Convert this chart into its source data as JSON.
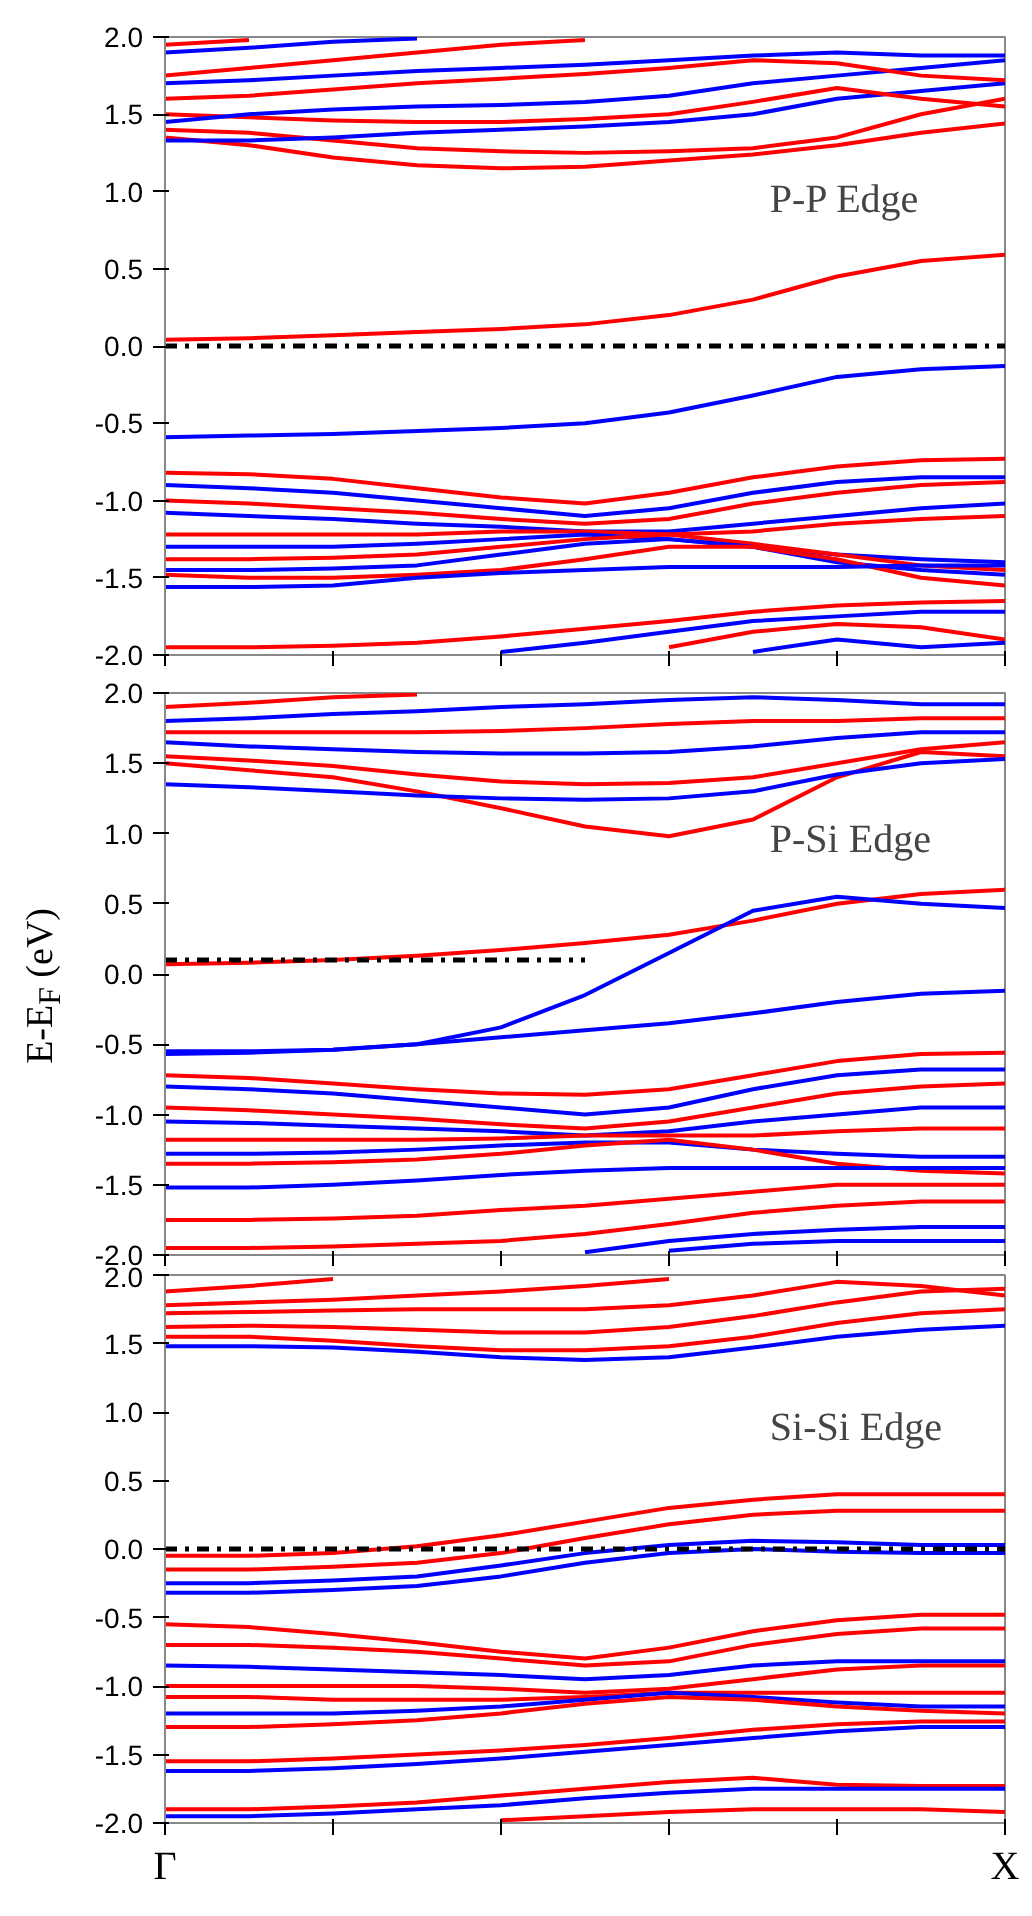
{
  "chart_data": [
    {
      "type": "line",
      "annotations": [
        "P-P Edge"
      ],
      "ylim": [
        -2,
        2
      ],
      "categories": [
        null,
        null,
        null,
        null,
        null,
        null,
        null,
        null,
        null,
        null,
        null
      ],
      "yticks": [
        {
          "value": -2,
          "label": "-2.0"
        },
        {
          "value": -1.5,
          "label": "-1.5"
        },
        {
          "value": -1,
          "label": "-1.0"
        },
        {
          "value": -0.5,
          "label": "-0.5"
        },
        {
          "value": 0,
          "label": "0.0"
        },
        {
          "value": 0.5,
          "label": "0.5"
        },
        {
          "value": 1,
          "label": "1.0"
        },
        {
          "value": 1.5,
          "label": "1.5"
        },
        {
          "value": 2,
          "label": "2.0"
        }
      ],
      "tick_labels": "y",
      "series": [
        {
          "color": "#ff0000",
          "values": [
            0.04,
            0.05,
            0.07,
            0.09,
            0.11,
            0.14,
            0.2,
            0.3,
            0.45,
            0.55,
            0.59
          ]
        },
        {
          "color": "#0000ff",
          "values": [
            -0.59,
            -0.58,
            -0.57,
            -0.55,
            -0.53,
            -0.5,
            -0.43,
            -0.32,
            -0.2,
            -0.15,
            -0.13
          ]
        },
        {
          "color": "#ff0000",
          "values": [
            1.35,
            1.3,
            1.22,
            1.17,
            1.15,
            1.16,
            1.2,
            1.24,
            1.3,
            1.38,
            1.44
          ]
        },
        {
          "color": "#ff0000",
          "values": [
            1.4,
            1.38,
            1.33,
            1.28,
            1.26,
            1.25,
            1.26,
            1.28,
            1.35,
            1.5,
            1.6
          ]
        },
        {
          "color": "#0000ff",
          "values": [
            1.33,
            1.33,
            1.35,
            1.38,
            1.4,
            1.42,
            1.45,
            1.5,
            1.6,
            1.65,
            1.7
          ]
        },
        {
          "color": "#ff0000",
          "values": [
            1.5,
            1.48,
            1.46,
            1.45,
            1.45,
            1.47,
            1.5,
            1.58,
            1.67,
            1.6,
            1.55
          ]
        },
        {
          "color": "#0000ff",
          "values": [
            1.45,
            1.5,
            1.53,
            1.55,
            1.56,
            1.58,
            1.62,
            1.7,
            1.75,
            1.8,
            1.85
          ]
        },
        {
          "color": "#ff0000",
          "values": [
            1.6,
            1.62,
            1.66,
            1.7,
            1.73,
            1.76,
            1.8,
            1.85,
            1.83,
            1.75,
            1.72
          ]
        },
        {
          "color": "#0000ff",
          "values": [
            1.7,
            1.72,
            1.75,
            1.78,
            1.8,
            1.82,
            1.85,
            1.88,
            1.9,
            1.88,
            1.88
          ]
        },
        {
          "color": "#ff0000",
          "values": [
            1.75,
            1.8,
            1.85,
            1.9,
            1.95,
            1.98,
            null,
            null,
            null,
            null,
            null
          ]
        },
        {
          "color": "#0000ff",
          "values": [
            1.9,
            1.93,
            1.97,
            1.99,
            null,
            null,
            null,
            null,
            null,
            null,
            null
          ]
        },
        {
          "color": "#ff0000",
          "values": [
            1.95,
            1.98,
            null,
            null,
            null,
            null,
            null,
            null,
            null,
            null,
            null
          ]
        },
        {
          "color": "#ff0000",
          "values": [
            -0.82,
            -0.83,
            -0.86,
            -0.92,
            -0.98,
            -1.02,
            -0.95,
            -0.85,
            -0.78,
            -0.74,
            -0.73
          ]
        },
        {
          "color": "#0000ff",
          "values": [
            -0.9,
            -0.92,
            -0.95,
            -1.0,
            -1.05,
            -1.1,
            -1.05,
            -0.95,
            -0.88,
            -0.85,
            -0.85
          ]
        },
        {
          "color": "#ff0000",
          "values": [
            -1.0,
            -1.02,
            -1.05,
            -1.08,
            -1.12,
            -1.15,
            -1.12,
            -1.02,
            -0.95,
            -0.9,
            -0.88
          ]
        },
        {
          "color": "#0000ff",
          "values": [
            -1.08,
            -1.1,
            -1.12,
            -1.15,
            -1.17,
            -1.2,
            -1.2,
            -1.15,
            -1.1,
            -1.05,
            -1.02
          ]
        },
        {
          "color": "#ff0000",
          "values": [
            -1.22,
            -1.22,
            -1.22,
            -1.22,
            -1.2,
            -1.2,
            -1.22,
            -1.2,
            -1.15,
            -1.12,
            -1.1
          ]
        },
        {
          "color": "#0000ff",
          "values": [
            -1.3,
            -1.3,
            -1.3,
            -1.28,
            -1.25,
            -1.22,
            -1.25,
            -1.3,
            -1.35,
            -1.38,
            -1.4
          ]
        },
        {
          "color": "#ff0000",
          "values": [
            -1.38,
            -1.38,
            -1.37,
            -1.35,
            -1.3,
            -1.25,
            -1.22,
            -1.28,
            -1.35,
            -1.42,
            -1.45
          ]
        },
        {
          "color": "#0000ff",
          "values": [
            -1.45,
            -1.45,
            -1.44,
            -1.42,
            -1.35,
            -1.28,
            -1.25,
            -1.3,
            -1.4,
            -1.45,
            -1.48
          ]
        },
        {
          "color": "#ff0000",
          "values": [
            -1.48,
            -1.5,
            -1.5,
            -1.48,
            -1.45,
            -1.38,
            -1.3,
            -1.3,
            -1.38,
            -1.5,
            -1.55
          ]
        },
        {
          "color": "#0000ff",
          "values": [
            -1.56,
            -1.56,
            -1.55,
            -1.5,
            -1.47,
            -1.45,
            -1.43,
            -1.43,
            -1.43,
            -1.42,
            -1.42
          ]
        },
        {
          "color": "#ff0000",
          "values": [
            -1.95,
            -1.95,
            -1.94,
            -1.92,
            -1.88,
            -1.83,
            -1.78,
            -1.72,
            -1.68,
            -1.66,
            -1.65
          ]
        },
        {
          "color": "#0000ff",
          "values": [
            null,
            null,
            null,
            null,
            -1.98,
            -1.92,
            -1.85,
            -1.78,
            -1.75,
            -1.72,
            -1.72
          ]
        },
        {
          "color": "#ff0000",
          "values": [
            null,
            null,
            null,
            null,
            null,
            null,
            -1.95,
            -1.85,
            -1.8,
            -1.82,
            -1.9
          ]
        },
        {
          "color": "#0000ff",
          "values": [
            null,
            null,
            null,
            null,
            null,
            null,
            null,
            -1.98,
            -1.9,
            -1.95,
            -1.92
          ]
        },
        {
          "color": "#000000",
          "line_style": "dashdot",
          "values": [
            0,
            0,
            0,
            0,
            0,
            0,
            0,
            0,
            0,
            0,
            0
          ]
        }
      ]
    },
    {
      "type": "line",
      "ylabel": "E-E$_{F}$ (eV)",
      "annotations": [
        "P-Si Edge"
      ],
      "ylim": [
        -2,
        2
      ],
      "categories": [
        null,
        null,
        null,
        null,
        null,
        null,
        null,
        null,
        null,
        null,
        null
      ],
      "yticks": [
        {
          "value": -2,
          "label": "-2.0"
        },
        {
          "value": -1.5,
          "label": "-1.5"
        },
        {
          "value": -1,
          "label": "-1.0"
        },
        {
          "value": -0.5,
          "label": "-0.5"
        },
        {
          "value": 0,
          "label": "0.0"
        },
        {
          "value": 0.5,
          "label": "0.5"
        },
        {
          "value": 1,
          "label": "1.0"
        },
        {
          "value": 1.5,
          "label": "1.5"
        },
        {
          "value": 2,
          "label": "2.0"
        }
      ],
      "tick_labels": "y",
      "series": [
        {
          "color": "#ff0000",
          "values": [
            0.07,
            0.08,
            0.1,
            0.13,
            0.17,
            0.22,
            0.28,
            0.38,
            0.5,
            0.57,
            0.6
          ]
        },
        {
          "color": "#0000ff",
          "values": [
            -0.55,
            -0.55,
            -0.54,
            -0.5,
            -0.38,
            -0.15,
            0.15,
            0.45,
            0.55,
            0.5,
            0.47
          ]
        },
        {
          "color": "#0000ff",
          "values": [
            -0.57,
            -0.56,
            -0.54,
            -0.5,
            -0.45,
            -0.4,
            -0.35,
            -0.28,
            -0.2,
            -0.14,
            -0.12
          ]
        },
        {
          "color": "#ff0000",
          "values": [
            1.5,
            1.45,
            1.4,
            1.3,
            1.18,
            1.05,
            0.98,
            1.1,
            1.4,
            1.58,
            1.55
          ]
        },
        {
          "color": "#0000ff",
          "values": [
            1.35,
            1.33,
            1.3,
            1.27,
            1.25,
            1.24,
            1.25,
            1.3,
            1.42,
            1.5,
            1.53
          ]
        },
        {
          "color": "#ff0000",
          "values": [
            1.55,
            1.52,
            1.48,
            1.42,
            1.37,
            1.35,
            1.36,
            1.4,
            1.5,
            1.6,
            1.65
          ]
        },
        {
          "color": "#0000ff",
          "values": [
            1.65,
            1.62,
            1.6,
            1.58,
            1.57,
            1.57,
            1.58,
            1.62,
            1.68,
            1.72,
            1.72
          ]
        },
        {
          "color": "#ff0000",
          "values": [
            1.72,
            1.72,
            1.72,
            1.72,
            1.73,
            1.75,
            1.78,
            1.8,
            1.8,
            1.82,
            1.82
          ]
        },
        {
          "color": "#0000ff",
          "values": [
            1.8,
            1.82,
            1.85,
            1.87,
            1.9,
            1.92,
            1.95,
            1.97,
            1.95,
            1.92,
            1.92
          ]
        },
        {
          "color": "#ff0000",
          "values": [
            1.9,
            1.93,
            1.97,
            1.99,
            null,
            null,
            null,
            null,
            null,
            null,
            null
          ]
        },
        {
          "color": "#ff0000",
          "values": [
            -0.72,
            -0.74,
            -0.78,
            -0.82,
            -0.85,
            -0.86,
            -0.82,
            -0.72,
            -0.62,
            -0.57,
            -0.56
          ]
        },
        {
          "color": "#0000ff",
          "values": [
            -0.8,
            -0.82,
            -0.85,
            -0.9,
            -0.95,
            -1.0,
            -0.95,
            -0.82,
            -0.72,
            -0.68,
            -0.68
          ]
        },
        {
          "color": "#ff0000",
          "values": [
            -0.95,
            -0.97,
            -1.0,
            -1.03,
            -1.07,
            -1.1,
            -1.05,
            -0.95,
            -0.85,
            -0.8,
            -0.78
          ]
        },
        {
          "color": "#0000ff",
          "values": [
            -1.05,
            -1.06,
            -1.08,
            -1.1,
            -1.12,
            -1.15,
            -1.12,
            -1.05,
            -1.0,
            -0.95,
            -0.95
          ]
        },
        {
          "color": "#ff0000",
          "values": [
            -1.18,
            -1.18,
            -1.18,
            -1.18,
            -1.17,
            -1.15,
            -1.15,
            -1.15,
            -1.12,
            -1.1,
            -1.1
          ]
        },
        {
          "color": "#0000ff",
          "values": [
            -1.28,
            -1.28,
            -1.27,
            -1.25,
            -1.22,
            -1.2,
            -1.2,
            -1.25,
            -1.28,
            -1.3,
            -1.3
          ]
        },
        {
          "color": "#ff0000",
          "values": [
            -1.35,
            -1.35,
            -1.34,
            -1.32,
            -1.28,
            -1.22,
            -1.18,
            -1.25,
            -1.35,
            -1.4,
            -1.42
          ]
        },
        {
          "color": "#0000ff",
          "values": [
            -1.52,
            -1.52,
            -1.5,
            -1.47,
            -1.43,
            -1.4,
            -1.38,
            -1.38,
            -1.38,
            -1.38,
            -1.38
          ]
        },
        {
          "color": "#ff0000",
          "values": [
            -1.75,
            -1.75,
            -1.74,
            -1.72,
            -1.68,
            -1.65,
            -1.6,
            -1.55,
            -1.5,
            -1.5,
            -1.5
          ]
        },
        {
          "color": "#ff0000",
          "values": [
            -1.95,
            -1.95,
            -1.94,
            -1.92,
            -1.9,
            -1.85,
            -1.78,
            -1.7,
            -1.65,
            -1.62,
            -1.62
          ]
        },
        {
          "color": "#0000ff",
          "values": [
            null,
            null,
            null,
            null,
            null,
            -1.98,
            -1.9,
            -1.85,
            -1.82,
            -1.8,
            -1.8
          ]
        },
        {
          "color": "#0000ff",
          "values": [
            null,
            null,
            null,
            null,
            null,
            null,
            -1.97,
            -1.92,
            -1.9,
            -1.9,
            -1.9
          ]
        },
        {
          "color": "#000000",
          "line_style": "dashdot",
          "values": [
            0.1,
            0.1,
            0.1,
            0.1,
            0.1,
            0.1,
            null,
            null,
            null,
            null,
            null
          ]
        }
      ]
    },
    {
      "type": "line",
      "annotations": [
        "Si-Si Edge"
      ],
      "ylim": [
        -2,
        2
      ],
      "categories": [
        "Γ",
        null,
        null,
        null,
        null,
        null,
        null,
        null,
        null,
        null,
        "X"
      ],
      "yticks": [
        {
          "value": -2,
          "label": "-2.0"
        },
        {
          "value": -1.5,
          "label": "-1.5"
        },
        {
          "value": -1,
          "label": "-1.0"
        },
        {
          "value": -0.5,
          "label": "-0.5"
        },
        {
          "value": 0,
          "label": "0.0"
        },
        {
          "value": 0.5,
          "label": "0.5"
        },
        {
          "value": 1,
          "label": "1.0"
        },
        {
          "value": 1.5,
          "label": "1.5"
        },
        {
          "value": 2,
          "label": "2.0"
        }
      ],
      "series": [
        {
          "color": "#ff0000",
          "values": [
            -0.05,
            -0.05,
            -0.03,
            0.02,
            0.1,
            0.2,
            0.3,
            0.36,
            0.4,
            0.4,
            0.4
          ]
        },
        {
          "color": "#ff0000",
          "values": [
            -0.15,
            -0.15,
            -0.13,
            -0.1,
            -0.03,
            0.08,
            0.18,
            0.25,
            0.28,
            0.28,
            0.28
          ]
        },
        {
          "color": "#0000ff",
          "values": [
            -0.25,
            -0.25,
            -0.23,
            -0.2,
            -0.12,
            -0.03,
            0.03,
            0.06,
            0.05,
            0.03,
            0.03
          ]
        },
        {
          "color": "#0000ff",
          "values": [
            -0.32,
            -0.32,
            -0.3,
            -0.27,
            -0.2,
            -0.1,
            -0.03,
            0.0,
            -0.02,
            -0.03,
            -0.03
          ]
        },
        {
          "color": "#0000ff",
          "values": [
            1.48,
            1.48,
            1.47,
            1.44,
            1.4,
            1.38,
            1.4,
            1.47,
            1.55,
            1.6,
            1.63
          ]
        },
        {
          "color": "#ff0000",
          "values": [
            1.55,
            1.55,
            1.52,
            1.48,
            1.45,
            1.45,
            1.48,
            1.55,
            1.65,
            1.72,
            1.75
          ]
        },
        {
          "color": "#ff0000",
          "values": [
            1.62,
            1.63,
            1.62,
            1.6,
            1.58,
            1.58,
            1.62,
            1.7,
            1.8,
            1.88,
            1.9
          ]
        },
        {
          "color": "#ff0000",
          "values": [
            1.72,
            1.73,
            1.74,
            1.75,
            1.75,
            1.75,
            1.78,
            1.85,
            1.95,
            1.92,
            1.85
          ]
        },
        {
          "color": "#ff0000",
          "values": [
            1.78,
            1.8,
            1.82,
            1.85,
            1.88,
            1.92,
            1.97,
            null,
            null,
            null,
            null
          ]
        },
        {
          "color": "#ff0000",
          "values": [
            1.88,
            1.92,
            1.97,
            null,
            null,
            null,
            null,
            null,
            null,
            null,
            null
          ]
        },
        {
          "color": "#ff0000",
          "values": [
            -0.55,
            -0.57,
            -0.62,
            -0.68,
            -0.75,
            -0.8,
            -0.72,
            -0.6,
            -0.52,
            -0.48,
            -0.48
          ]
        },
        {
          "color": "#ff0000",
          "values": [
            -0.7,
            -0.7,
            -0.72,
            -0.75,
            -0.8,
            -0.85,
            -0.82,
            -0.7,
            -0.62,
            -0.58,
            -0.58
          ]
        },
        {
          "color": "#0000ff",
          "values": [
            -0.85,
            -0.86,
            -0.88,
            -0.9,
            -0.92,
            -0.95,
            -0.92,
            -0.85,
            -0.82,
            -0.82,
            -0.82
          ]
        },
        {
          "color": "#ff0000",
          "values": [
            -1.0,
            -1.0,
            -1.0,
            -1.0,
            -1.02,
            -1.05,
            -1.02,
            -0.95,
            -0.88,
            -0.85,
            -0.85
          ]
        },
        {
          "color": "#ff0000",
          "values": [
            -1.08,
            -1.08,
            -1.1,
            -1.1,
            -1.1,
            -1.08,
            -1.05,
            -1.05,
            -1.05,
            -1.05,
            -1.05
          ]
        },
        {
          "color": "#0000ff",
          "values": [
            -1.2,
            -1.2,
            -1.2,
            -1.18,
            -1.15,
            -1.1,
            -1.05,
            -1.08,
            -1.12,
            -1.15,
            -1.15
          ]
        },
        {
          "color": "#ff0000",
          "values": [
            -1.3,
            -1.3,
            -1.28,
            -1.25,
            -1.2,
            -1.13,
            -1.08,
            -1.1,
            -1.15,
            -1.18,
            -1.2
          ]
        },
        {
          "color": "#ff0000",
          "values": [
            -1.55,
            -1.55,
            -1.53,
            -1.5,
            -1.47,
            -1.43,
            -1.38,
            -1.32,
            -1.28,
            -1.26,
            -1.26
          ]
        },
        {
          "color": "#0000ff",
          "values": [
            -1.62,
            -1.62,
            -1.6,
            -1.57,
            -1.53,
            -1.48,
            -1.43,
            -1.38,
            -1.33,
            -1.3,
            -1.3
          ]
        },
        {
          "color": "#ff0000",
          "values": [
            -1.9,
            -1.9,
            -1.88,
            -1.85,
            -1.8,
            -1.75,
            -1.7,
            -1.67,
            -1.72,
            -1.73,
            -1.73
          ]
        },
        {
          "color": "#0000ff",
          "values": [
            -1.95,
            -1.95,
            -1.93,
            -1.9,
            -1.87,
            -1.82,
            -1.78,
            -1.75,
            -1.75,
            -1.75,
            -1.75
          ]
        },
        {
          "color": "#ff0000",
          "values": [
            null,
            null,
            null,
            null,
            -1.98,
            -1.95,
            -1.92,
            -1.9,
            -1.9,
            -1.9,
            -1.92
          ]
        },
        {
          "color": "#000000",
          "line_style": "dashdot",
          "values": [
            0,
            0,
            0,
            0,
            0,
            0,
            0,
            0,
            0,
            0,
            0
          ]
        }
      ]
    }
  ]
}
